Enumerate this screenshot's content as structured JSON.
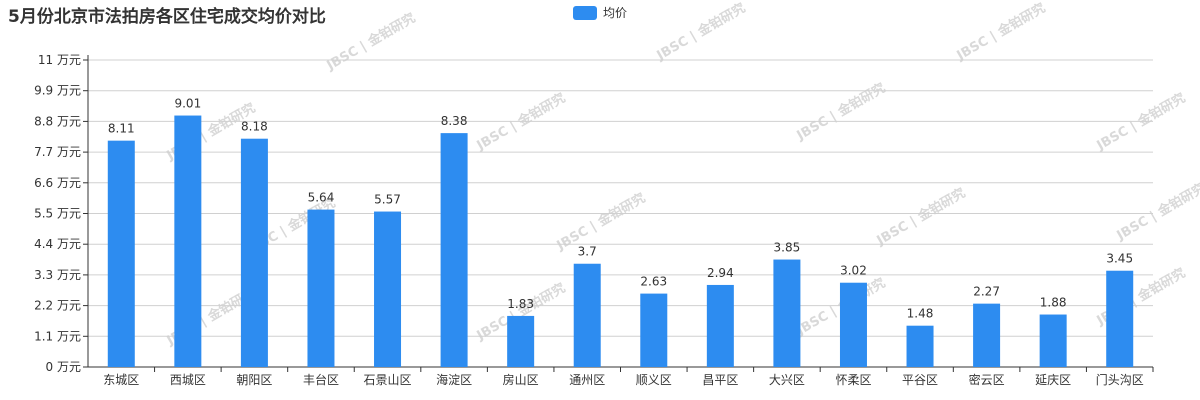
{
  "title": "5月份北京市法拍房各区住宅成交均价对比",
  "chart_data": {
    "type": "bar",
    "legend": {
      "position": "top-center",
      "label": "均价"
    },
    "categories": [
      "东城区",
      "西城区",
      "朝阳区",
      "丰台区",
      "石景山区",
      "海淀区",
      "房山区",
      "通州区",
      "顺义区",
      "昌平区",
      "大兴区",
      "怀柔区",
      "平谷区",
      "密云区",
      "延庆区",
      "门头沟区"
    ],
    "series": [
      {
        "name": "均价",
        "color": "#2d8cf0",
        "values": [
          8.11,
          9.01,
          8.18,
          5.64,
          5.57,
          8.38,
          1.83,
          3.7,
          2.63,
          2.94,
          3.85,
          3.02,
          1.48,
          2.27,
          1.88,
          3.45
        ]
      }
    ],
    "yunit": "万元",
    "ylim": [
      0,
      11
    ],
    "yticks": [
      0,
      1.1,
      2.2,
      3.3,
      4.4,
      5.5,
      6.6,
      7.7,
      8.8,
      9.9,
      11
    ],
    "grid": true,
    "data_labels": true
  },
  "watermark": "JBSC | 金铂研究"
}
